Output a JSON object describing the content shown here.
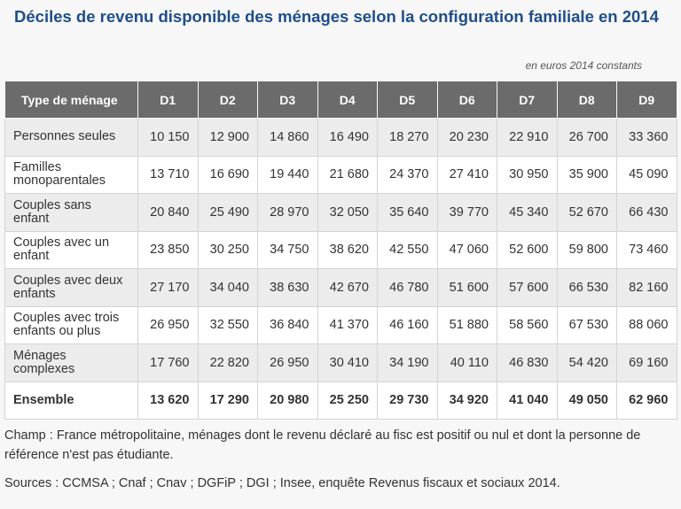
{
  "title": "Déciles de revenu disponible des ménages selon la configuration familiale en 2014",
  "unit_note": "en euros 2014 constants",
  "table": {
    "headers": [
      "Type de ménage",
      "D1",
      "D2",
      "D3",
      "D4",
      "D5",
      "D6",
      "D7",
      "D8",
      "D9"
    ],
    "rows": [
      {
        "label": "Personnes seules",
        "values": [
          "10 150",
          "12 900",
          "14 860",
          "16 490",
          "18 270",
          "20 230",
          "22 910",
          "26 700",
          "33 360"
        ]
      },
      {
        "label": "Familles monoparentales",
        "values": [
          "13 710",
          "16 690",
          "19 440",
          "21 680",
          "24 370",
          "27 410",
          "30 950",
          "35 900",
          "45 090"
        ]
      },
      {
        "label": "Couples sans enfant",
        "values": [
          "20 840",
          "25 490",
          "28 970",
          "32 050",
          "35 640",
          "39 770",
          "45 340",
          "52 670",
          "66 430"
        ]
      },
      {
        "label": "Couples avec un enfant",
        "values": [
          "23 850",
          "30 250",
          "34 750",
          "38 620",
          "42 550",
          "47 060",
          "52 600",
          "59 800",
          "73 460"
        ]
      },
      {
        "label": "Couples avec deux enfants",
        "values": [
          "27 170",
          "34 040",
          "38 630",
          "42 670",
          "46 780",
          "51 600",
          "57 600",
          "66 530",
          "82 160"
        ]
      },
      {
        "label": "Couples avec trois enfants ou plus",
        "values": [
          "26 950",
          "32 550",
          "36 840",
          "41 370",
          "46 160",
          "51 880",
          "58 560",
          "67 530",
          "88 060"
        ]
      },
      {
        "label": "Ménages complexes",
        "values": [
          "17 760",
          "22 820",
          "26 950",
          "30 410",
          "34 190",
          "40 110",
          "46 830",
          "54 420",
          "69 160"
        ]
      }
    ],
    "total": {
      "label": "Ensemble",
      "values": [
        "13 620",
        "17 290",
        "20 980",
        "25 250",
        "29 730",
        "34 920",
        "41 040",
        "49 050",
        "62 960"
      ]
    }
  },
  "notes": {
    "champ": "Champ : France métropolitaine, ménages dont le revenu déclaré au fisc est positif ou nul et dont la personne de référence n'est pas étudiante.",
    "sources": "Sources : CCMSA ; Cnaf ; Cnav ; DGFiP ; DGI ; Insee, enquête Revenus fiscaux et sociaux 2014."
  }
}
